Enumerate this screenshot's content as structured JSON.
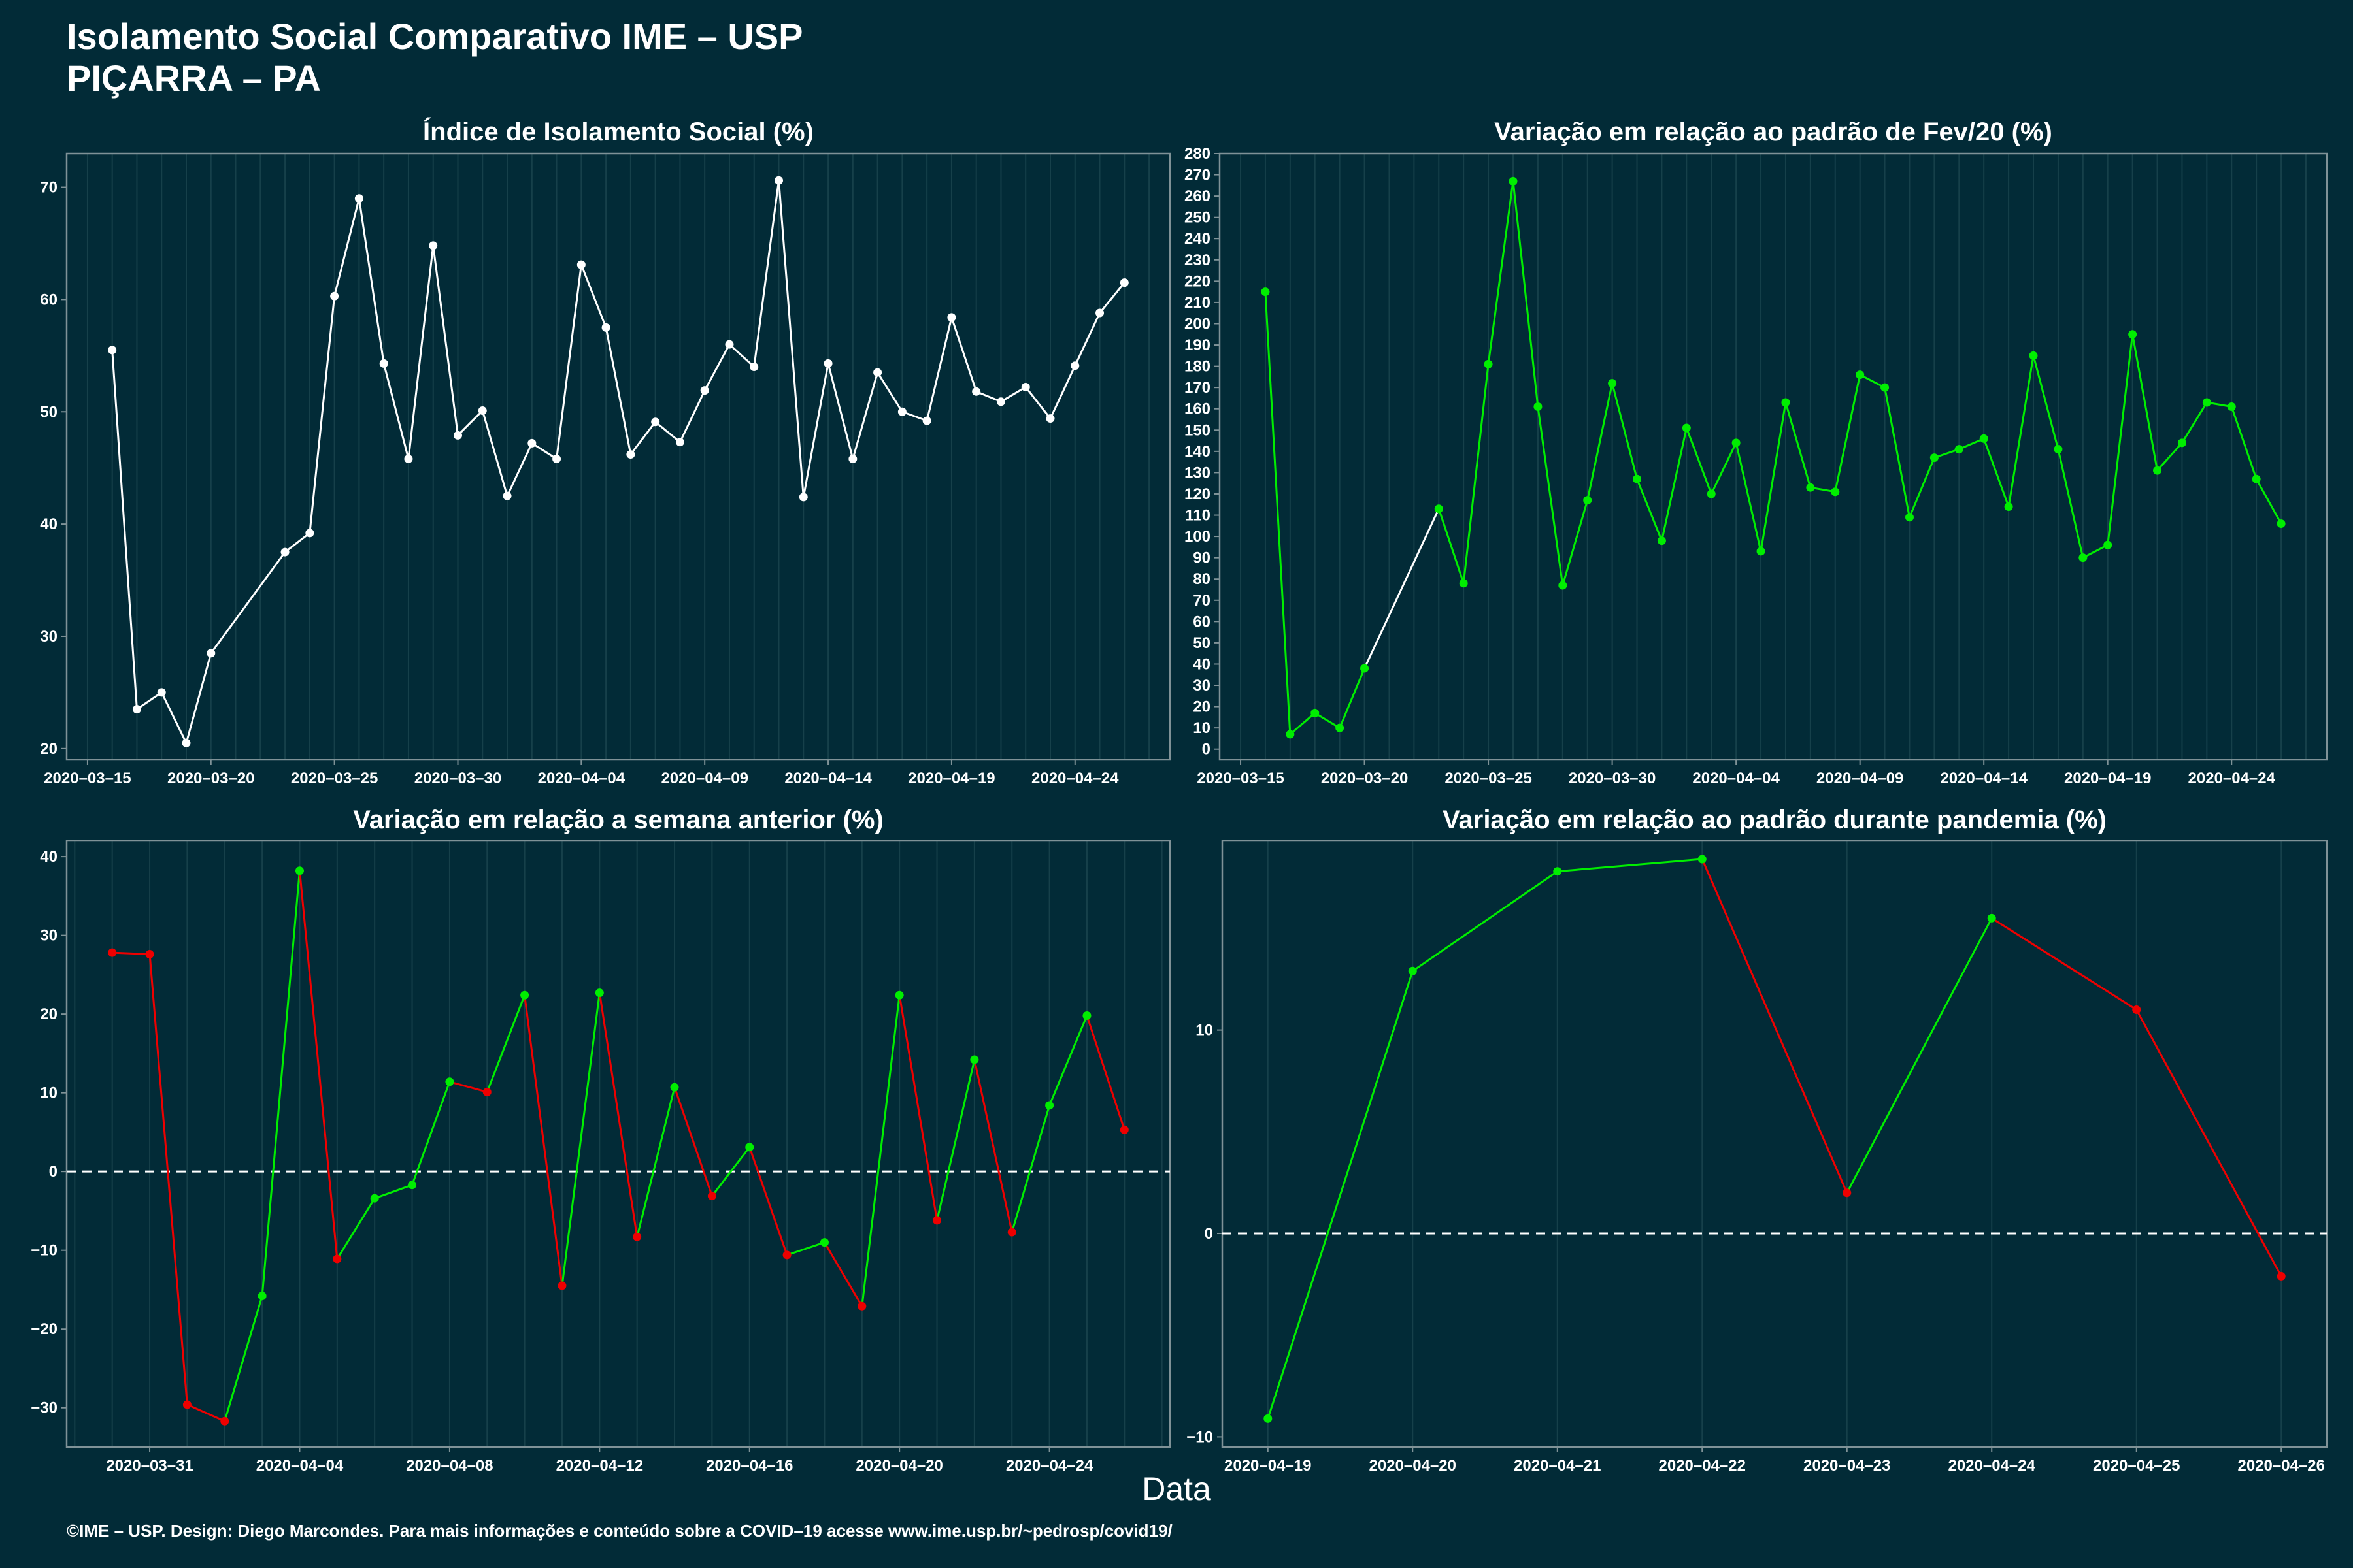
{
  "header": {
    "title_line1": "Isolamento Social Comparativo IME – USP",
    "title_line2": "PIÇARRA – PA"
  },
  "xlabel": "Data",
  "footer": "©IME – USP. Design: Diego Marcondes. Para mais informações e conteúdo sobre a COVID–19 acesse www.ime.usp.br/~pedrosp/covid19/",
  "colors": {
    "background": "#022b37",
    "grid": "#16404a",
    "axis": "#7f9297",
    "white": "#ffffff",
    "green": "#00ee00",
    "red": "#ee0000"
  },
  "chart_data": [
    {
      "type": "line",
      "title": "Índice de Isolamento Social (%)",
      "xlabel": "",
      "ylabel": "",
      "ylim": [
        19,
        73
      ],
      "yticks": [
        20,
        30,
        40,
        50,
        60,
        70
      ],
      "xticks": [
        "2020–03–15",
        "2020–03–20",
        "2020–03–25",
        "2020–03–30",
        "2020–04–04",
        "2020–04–09",
        "2020–04–14",
        "2020–04–19",
        "2020–04–24"
      ],
      "grid": true,
      "series": [
        {
          "color": "white",
          "x": [
            "2020-03-16",
            "2020-03-17",
            "2020-03-18",
            "2020-03-19",
            "2020-03-20",
            "2020-03-23",
            "2020-03-24",
            "2020-03-25",
            "2020-03-26",
            "2020-03-27",
            "2020-03-28",
            "2020-03-29",
            "2020-03-30",
            "2020-03-31",
            "2020-04-01",
            "2020-04-02",
            "2020-04-03",
            "2020-04-04",
            "2020-04-05",
            "2020-04-06",
            "2020-04-07",
            "2020-04-08",
            "2020-04-09",
            "2020-04-10",
            "2020-04-11",
            "2020-04-12",
            "2020-04-13",
            "2020-04-14",
            "2020-04-15",
            "2020-04-16",
            "2020-04-17",
            "2020-04-18",
            "2020-04-19",
            "2020-04-20",
            "2020-04-21",
            "2020-04-22",
            "2020-04-23",
            "2020-04-24",
            "2020-04-25",
            "2020-04-26"
          ],
          "values": [
            55.5,
            23.5,
            25.0,
            20.5,
            28.5,
            37.5,
            39.2,
            60.3,
            69.0,
            54.3,
            45.8,
            64.8,
            47.9,
            50.1,
            42.5,
            47.2,
            45.8,
            63.1,
            57.5,
            46.2,
            49.1,
            47.3,
            51.9,
            56.0,
            54.0,
            70.6,
            42.4,
            54.3,
            45.8,
            53.5,
            50.0,
            49.2,
            58.4,
            51.8,
            50.9,
            52.2,
            49.4,
            54.1,
            58.8,
            61.5
          ]
        }
      ]
    },
    {
      "type": "line",
      "title": "Variação em relação ao padrão de Fev/20 (%)",
      "xlabel": "",
      "ylabel": "",
      "ylim": [
        -5,
        280
      ],
      "yticks": [
        0,
        10,
        20,
        30,
        40,
        50,
        60,
        70,
        80,
        90,
        100,
        110,
        120,
        130,
        140,
        150,
        160,
        170,
        180,
        190,
        200,
        210,
        220,
        230,
        240,
        250,
        260,
        270,
        280
      ],
      "xticks": [
        "2020–03–15",
        "2020–03–20",
        "2020–03–25",
        "2020–03–30",
        "2020–04–04",
        "2020–04–09",
        "2020–04–14",
        "2020–04–19",
        "2020–04–24"
      ],
      "grid": true,
      "series": [
        {
          "color": "green",
          "gap_color": "white",
          "x": [
            "2020-03-16",
            "2020-03-17",
            "2020-03-18",
            "2020-03-19",
            "2020-03-20",
            "2020-03-23",
            "2020-03-24",
            "2020-03-25",
            "2020-03-26",
            "2020-03-27",
            "2020-03-28",
            "2020-03-29",
            "2020-03-30",
            "2020-03-31",
            "2020-04-01",
            "2020-04-02",
            "2020-04-03",
            "2020-04-04",
            "2020-04-05",
            "2020-04-06",
            "2020-04-07",
            "2020-04-08",
            "2020-04-09",
            "2020-04-10",
            "2020-04-11",
            "2020-04-12",
            "2020-04-13",
            "2020-04-14",
            "2020-04-15",
            "2020-04-16",
            "2020-04-17",
            "2020-04-18",
            "2020-04-19",
            "2020-04-20",
            "2020-04-21",
            "2020-04-22",
            "2020-04-23",
            "2020-04-24",
            "2020-04-25",
            "2020-04-26"
          ],
          "values": [
            215,
            7,
            17,
            10,
            38,
            113,
            78,
            181,
            267,
            161,
            77,
            117,
            172,
            127,
            98,
            151,
            120,
            144,
            93,
            163,
            123,
            121,
            176,
            170,
            109,
            137,
            141,
            146,
            114,
            185,
            141,
            90,
            96,
            195,
            131,
            144,
            163,
            161,
            127,
            106
          ]
        }
      ]
    },
    {
      "type": "line",
      "title": "Variação em relação a semana anterior (%)",
      "xlabel": "",
      "ylabel": "",
      "ylim": [
        -35,
        42
      ],
      "yticks": [
        -30,
        -20,
        -10,
        0,
        10,
        20,
        30,
        40
      ],
      "xticks": [
        "2020–03–31",
        "2020–04–04",
        "2020–04–08",
        "2020–04–12",
        "2020–04–16",
        "2020–04–20",
        "2020–04–24"
      ],
      "grid": true,
      "reference_line": 0,
      "series": [
        {
          "color_rule": "green when increasing, red when decreasing",
          "x": [
            "2020-03-30",
            "2020-03-31",
            "2020-04-01",
            "2020-04-02",
            "2020-04-03",
            "2020-04-04",
            "2020-04-05",
            "2020-04-06",
            "2020-04-07",
            "2020-04-08",
            "2020-04-09",
            "2020-04-10",
            "2020-04-11",
            "2020-04-12",
            "2020-04-13",
            "2020-04-14",
            "2020-04-15",
            "2020-04-16",
            "2020-04-17",
            "2020-04-18",
            "2020-04-19",
            "2020-04-20",
            "2020-04-21",
            "2020-04-22",
            "2020-04-23",
            "2020-04-24",
            "2020-04-25",
            "2020-04-26"
          ],
          "values": [
            27.8,
            27.6,
            -29.6,
            -31.7,
            -15.8,
            38.2,
            -11.1,
            -3.4,
            -1.7,
            11.4,
            10.1,
            22.4,
            -14.5,
            22.7,
            -8.3,
            10.7,
            -3.1,
            3.1,
            -10.6,
            -9.0,
            -17.1,
            22.4,
            -6.2,
            14.2,
            -7.7,
            8.4,
            19.8,
            5.3
          ]
        }
      ]
    },
    {
      "type": "line",
      "title": "Variação em relação ao padrão durante pandemia (%)",
      "xlabel": "",
      "ylabel": "",
      "ylim": [
        -10.5,
        19.3
      ],
      "yticks": [
        -10,
        0,
        10
      ],
      "xticks": [
        "2020–04–19",
        "2020–04–20",
        "2020–04–21",
        "2020–04–22",
        "2020–04–23",
        "2020–04–24",
        "2020–04–25",
        "2020–04–26"
      ],
      "grid": true,
      "reference_line": 0,
      "series": [
        {
          "color_rule": "green when increasing, red when decreasing",
          "x": [
            "2020-04-19",
            "2020-04-20",
            "2020-04-21",
            "2020-04-22",
            "2020-04-23",
            "2020-04-24",
            "2020-04-25",
            "2020-04-26"
          ],
          "values": [
            -9.1,
            12.9,
            17.8,
            18.4,
            2.0,
            15.5,
            11.0,
            -2.1
          ]
        }
      ]
    }
  ]
}
